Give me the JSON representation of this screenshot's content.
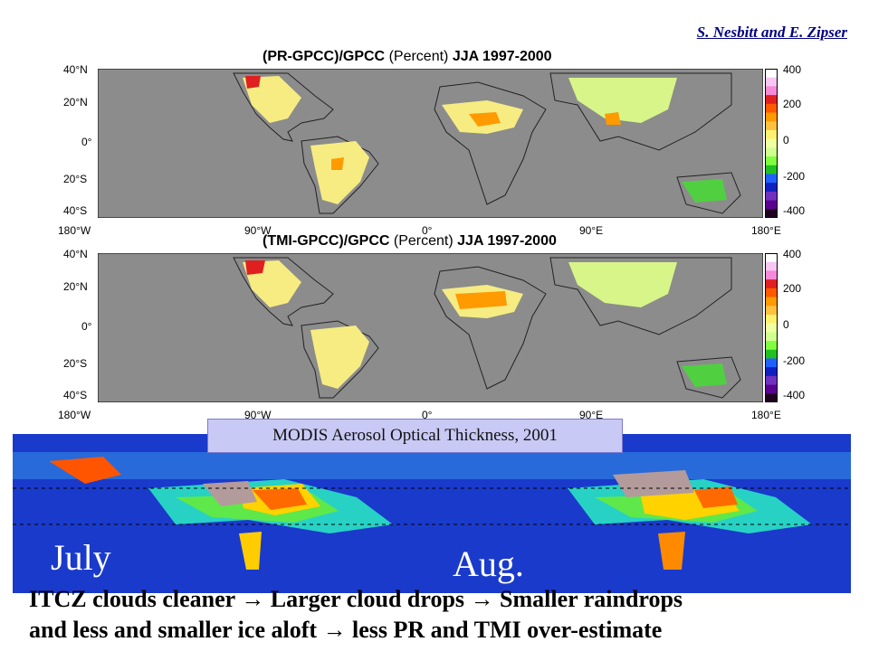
{
  "credit": "S. Nesbitt and E. Zipser",
  "panels": [
    {
      "title_a": "(PR-GPCC)/GPCC",
      "title_b": "(Percent)",
      "title_c": "JJA 1997-2000"
    },
    {
      "title_a": "(TMI-GPCC)/GPCC",
      "title_b": "(Percent)",
      "title_c": "JJA 1997-2000"
    }
  ],
  "lat_labels": [
    "40°N",
    "20°N",
    "0°",
    "20°S",
    "40°S"
  ],
  "lon_labels": [
    "180°W",
    "90°W",
    "0°",
    "90°E",
    "180°E"
  ],
  "colorbar": {
    "ticks": [
      "400",
      "200",
      "0",
      "-200",
      "-400"
    ],
    "colors": [
      "#ffffff",
      "#f7c6f2",
      "#f58ad8",
      "#e02020",
      "#ff5a00",
      "#ff9a00",
      "#ffc040",
      "#fff070",
      "#f0ffa0",
      "#d0ff90",
      "#80ff40",
      "#20c020",
      "#2060ff",
      "#1020c0",
      "#7030c0",
      "#5a0090",
      "#200020"
    ]
  },
  "modis_label": "MODIS Aerosol Optical Thickness, 2001",
  "months": [
    "July",
    "Aug."
  ],
  "caption": {
    "line1": "ITCZ clouds cleaner → Larger cloud drops → Smaller raindrops",
    "line2": "and less and smaller ice aloft → less PR and TMI over-estimate"
  }
}
